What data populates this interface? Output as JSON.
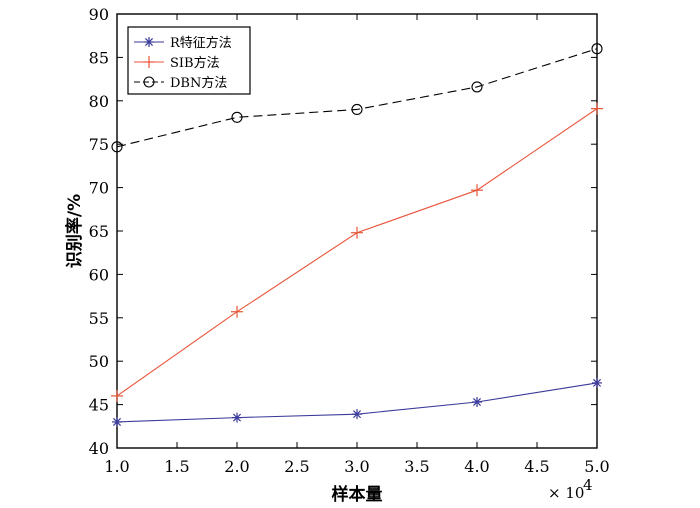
{
  "chart_data": {
    "type": "line",
    "x": [
      1.0,
      2.0,
      3.0,
      4.0,
      5.0
    ],
    "x_multiplier": "× 10^4",
    "xlabel": "样本量",
    "ylabel": "识别率/%",
    "xlim": [
      1.0,
      5.0
    ],
    "ylim": [
      40,
      90
    ],
    "xticks": [
      "1.0",
      "1.5",
      "2.0",
      "2.5",
      "3.0",
      "3.5",
      "4.0",
      "4.5",
      "5.0"
    ],
    "yticks": [
      "40",
      "45",
      "50",
      "55",
      "60",
      "65",
      "70",
      "75",
      "80",
      "85",
      "90"
    ],
    "grid": false,
    "legend_position": "top-left",
    "series": [
      {
        "name": "R特征方法",
        "values": [
          43.0,
          43.5,
          43.9,
          45.3,
          47.5
        ],
        "color": "#3a3a9a",
        "marker": "asterisk",
        "line_style": "solid"
      },
      {
        "name": "SIB方法",
        "values": [
          46.0,
          55.7,
          64.8,
          69.7,
          79.1
        ],
        "color": "#e8553a",
        "marker": "plus",
        "line_style": "solid"
      },
      {
        "name": "DBN方法",
        "values": [
          74.7,
          78.1,
          79.0,
          81.6,
          86.0
        ],
        "color": "#000000",
        "marker": "circle",
        "line_style": "dashed"
      }
    ]
  }
}
